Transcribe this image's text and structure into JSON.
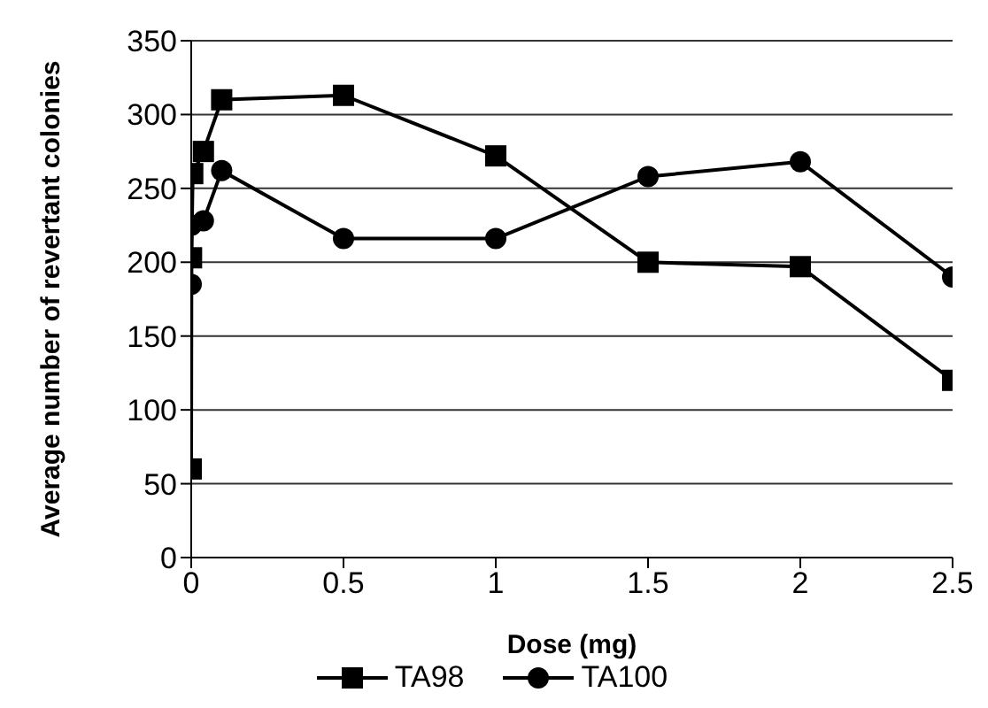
{
  "chart_data": {
    "type": "line",
    "xlabel": "Dose (mg)",
    "ylabel": "Average number of revertant colonies",
    "xlim": [
      0,
      2.5
    ],
    "xticks": [
      0,
      0.5,
      1,
      1.5,
      2,
      2.5
    ],
    "ylim": [
      0,
      350
    ],
    "yticks": [
      0,
      50,
      100,
      150,
      200,
      250,
      300,
      350
    ],
    "grid": "y",
    "legend": "bottom",
    "line_style": "solid",
    "series": [
      {
        "name": "TA98",
        "color": "#000000",
        "marker": "square",
        "x": [
          0,
          0.001,
          0.005,
          0.04,
          0.1,
          0.5,
          1,
          1.5,
          2,
          2.5
        ],
        "values": [
          60,
          203,
          260,
          275,
          310,
          313,
          272,
          200,
          197,
          120
        ]
      },
      {
        "name": "TA100",
        "color": "#000000",
        "marker": "circle",
        "x": [
          0,
          0.001,
          0.04,
          0.1,
          0.5,
          1,
          1.5,
          2,
          2.5
        ],
        "values": [
          185,
          225,
          228,
          262,
          216,
          216,
          258,
          268,
          190
        ]
      }
    ]
  }
}
